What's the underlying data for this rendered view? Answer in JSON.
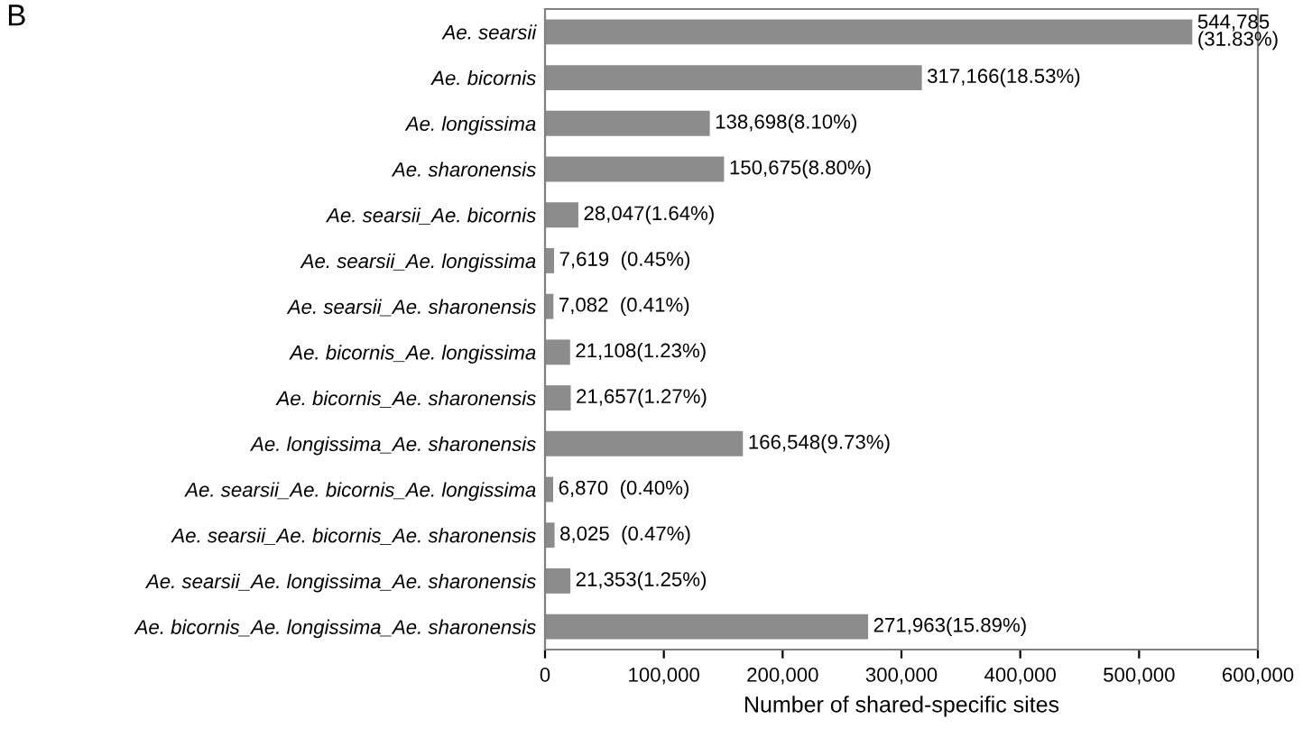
{
  "chart_data": {
    "type": "bar",
    "orientation": "horizontal",
    "xlabel": "Number of shared-specific sites",
    "annotations": [
      "B"
    ],
    "categories": [
      "Ae. searsii",
      "Ae. bicornis",
      "Ae. longissima",
      "Ae. sharonensis",
      "Ae. searsii_Ae. bicornis",
      "Ae. searsii_Ae. longissima",
      "Ae. searsii_Ae. sharonensis",
      "Ae. bicornis_Ae. longissima",
      "Ae. bicornis_Ae. sharonensis",
      "Ae. longissima_Ae. sharonensis",
      "Ae. searsii_Ae. bicornis_Ae. longissima",
      "Ae. searsii_Ae. bicornis_Ae. sharonensis",
      "Ae. searsii_Ae. longissima_Ae. sharonensis",
      "Ae. bicornis_Ae. longissima_Ae. sharonensis"
    ],
    "values": [
      544785,
      317166,
      138698,
      150675,
      28047,
      7619,
      7082,
      21108,
      21657,
      166548,
      6870,
      8025,
      21353,
      271963
    ],
    "value_labels": [
      "544,785\n(31.83%)",
      "317,166(18.53%)",
      "138,698(8.10%)",
      "150,675(8.80%)",
      "28,047(1.64%)",
      "7,619  (0.45%)",
      "7,082  (0.41%)",
      "21,108(1.23%)",
      "21,657(1.27%)",
      "166,548(9.73%)",
      "6,870  (0.40%)",
      "8,025  (0.47%)",
      "21,353(1.25%)",
      "271,963(15.89%)"
    ],
    "color": "#8c8c8c",
    "xlim": [
      0,
      600000
    ],
    "xticks": [
      {
        "value": 0,
        "label": "0"
      },
      {
        "value": 100000,
        "label": "100,000"
      },
      {
        "value": 200000,
        "label": "200,000"
      },
      {
        "value": 300000,
        "label": "300,000"
      },
      {
        "value": 400000,
        "label": "400,000"
      },
      {
        "value": 500000,
        "label": "500,000"
      },
      {
        "value": 600000,
        "label": "600,000"
      }
    ],
    "grid": false,
    "legend": false
  }
}
